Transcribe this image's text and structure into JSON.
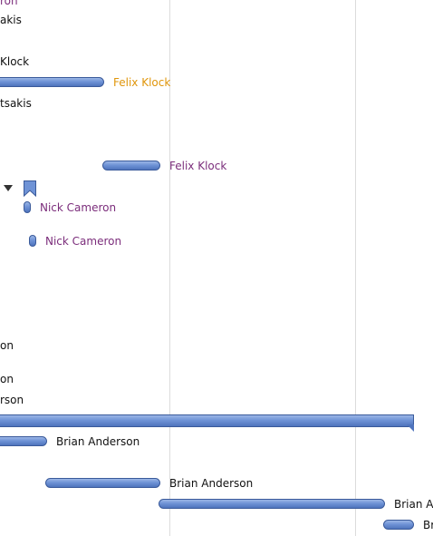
{
  "rows": [
    {
      "text": "ron",
      "color": "purple"
    },
    {
      "text": "akis",
      "color": "dark"
    },
    {
      "text": "Klock",
      "color": "dark"
    },
    {
      "text": "Felix Klock",
      "color": "orange"
    },
    {
      "text": "tsakis",
      "color": "dark"
    },
    {
      "text": "Felix Klock",
      "color": "purple"
    },
    {
      "text": "Nick Cameron",
      "color": "purple"
    },
    {
      "text": "Nick Cameron",
      "color": "purple"
    },
    {
      "text": "on",
      "color": "dark"
    },
    {
      "text": "on",
      "color": "dark"
    },
    {
      "text": "rson",
      "color": "dark"
    },
    {
      "text": "Brian Anderson",
      "color": "dark"
    },
    {
      "text": "Brian Anderson",
      "color": "dark"
    },
    {
      "text": "Brian An",
      "color": "dark"
    },
    {
      "text": "Br",
      "color": "dark"
    }
  ],
  "icons": {
    "expand": "triangle-down-icon",
    "milestone": "milestone-flag-icon"
  },
  "colors": {
    "bar": "#6f93d6",
    "grid": "#dcdcdc",
    "label_purple": "#7b2d7b",
    "label_orange": "#e0960b"
  }
}
